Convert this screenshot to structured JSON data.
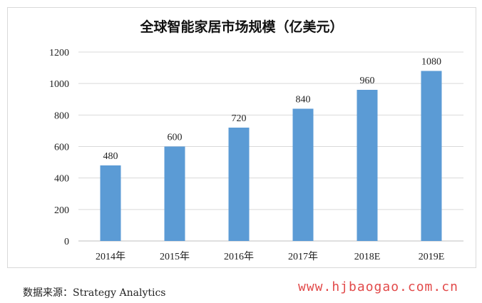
{
  "chart_data": {
    "type": "bar",
    "title": "全球智能家居市场规模（亿美元）",
    "categories": [
      "2014年",
      "2015年",
      "2016年",
      "2017年",
      "2018E",
      "2019E"
    ],
    "values": [
      480,
      600,
      720,
      840,
      960,
      1080
    ],
    "data_labels": [
      "480",
      "600",
      "720",
      "840",
      "960",
      "1080"
    ],
    "ylim": [
      0,
      1200
    ],
    "yticks": [
      "0",
      "200",
      "400",
      "600",
      "800",
      "1000",
      "1200"
    ],
    "xlabel": "",
    "ylabel": "",
    "grid": true,
    "bar_color": "#5b9bd5"
  },
  "source": "数据来源：Strategy Analytics",
  "watermark": "www.hjbaogao.com.cn"
}
